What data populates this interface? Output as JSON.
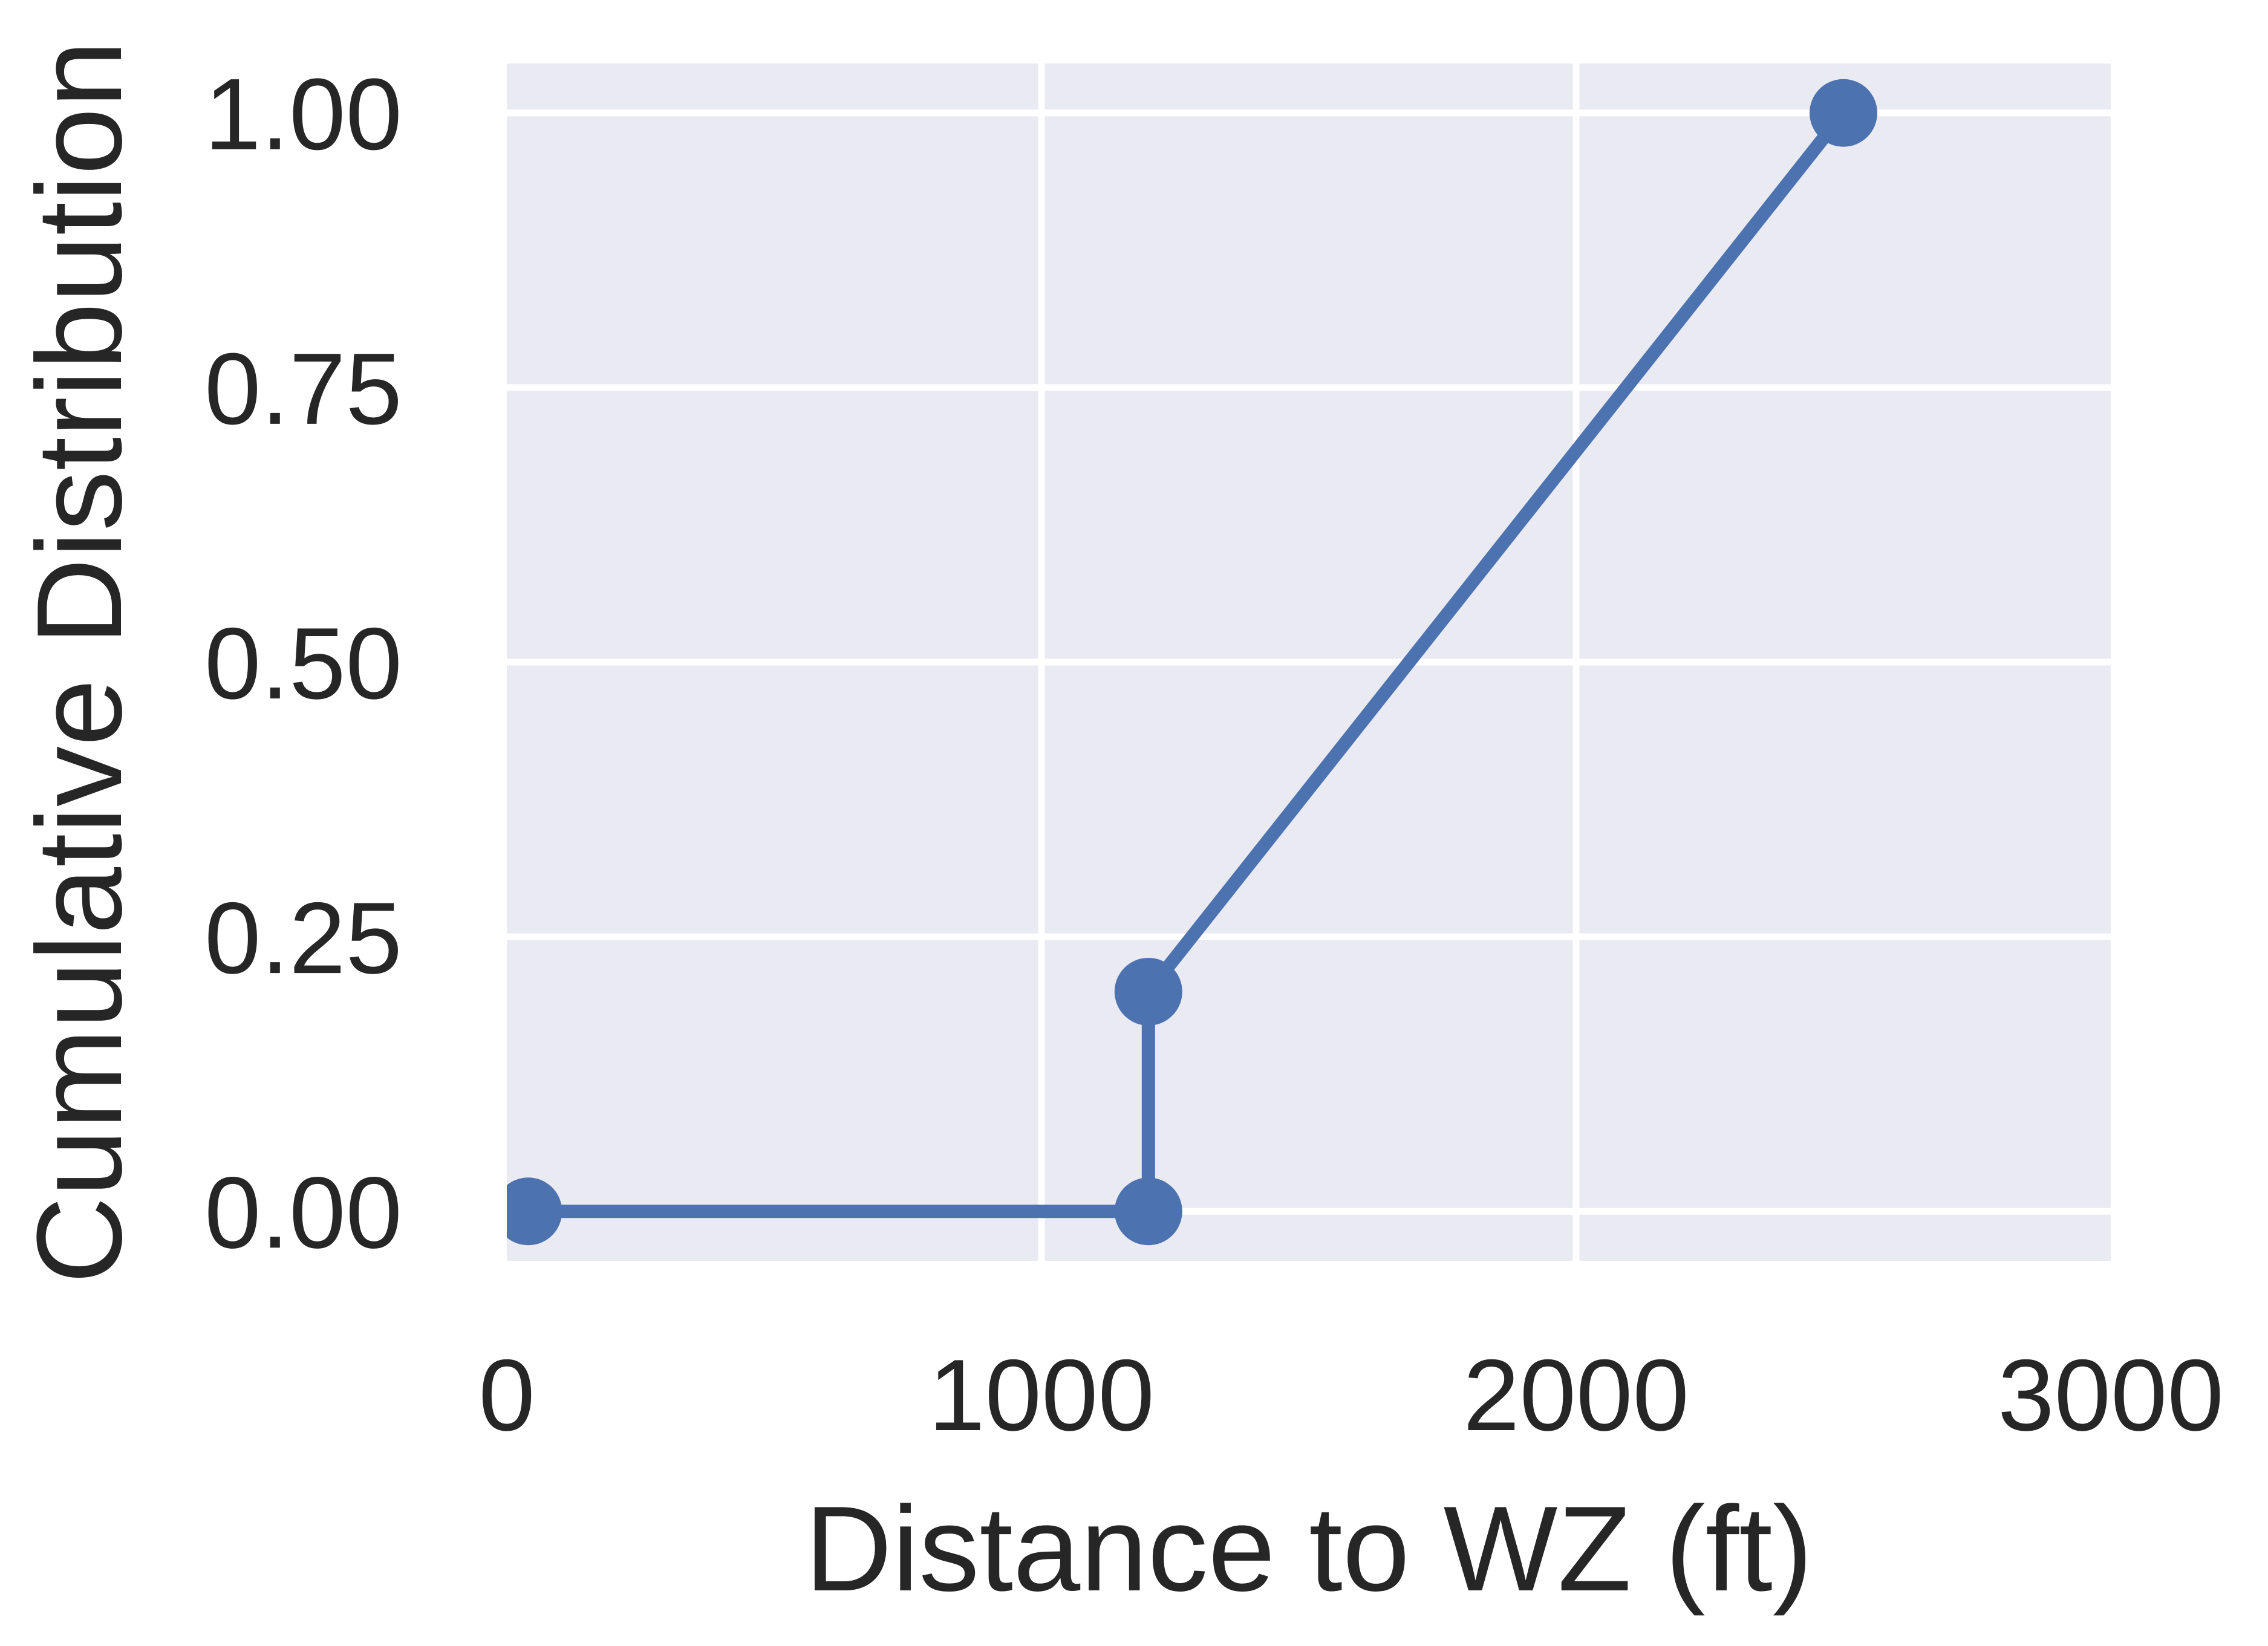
{
  "chart_data": {
    "type": "line",
    "title": "",
    "xlabel": "Distance to WZ (ft)",
    "ylabel": "Cumulative Distribution",
    "xlim": [
      0,
      3000
    ],
    "ylim": [
      -0.045,
      1.045
    ],
    "xticks": [
      0,
      1000,
      2000,
      3000
    ],
    "xtick_labels": [
      "0",
      "1000",
      "2000",
      "3000"
    ],
    "yticks": [
      0,
      0.25,
      0.5,
      0.75,
      1.0
    ],
    "ytick_labels": [
      "0.00",
      "0.25",
      "0.50",
      "0.75",
      "1.00"
    ],
    "grid": true,
    "legend": "none",
    "series": [
      {
        "x": [
          40,
          1200,
          1200,
          2500
        ],
        "y": [
          0.0,
          0.0,
          0.2,
          1.0
        ],
        "color": "#4c72b0",
        "marker": "circle"
      }
    ],
    "background": "#eaeaf2",
    "grid_color": "#ffffff",
    "text_color": "#262626"
  }
}
